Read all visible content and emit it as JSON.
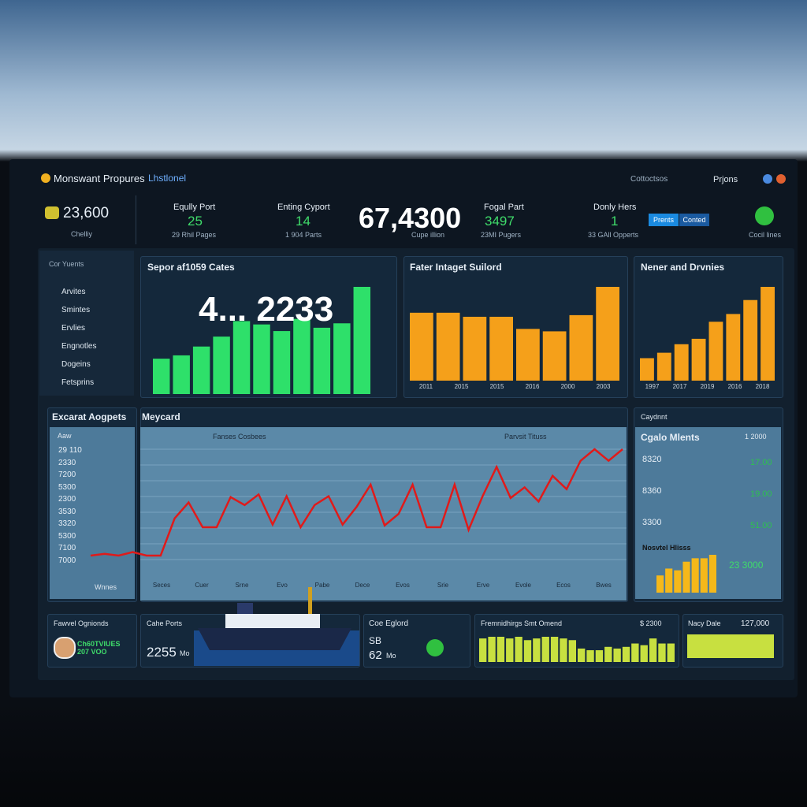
{
  "header": {
    "brand": "Monswant Propures",
    "menu": "Lhstlonel",
    "search": "Cottoctsos",
    "user": "Prjons"
  },
  "kpis": [
    {
      "value": "23,600",
      "sub": "Chelliy"
    },
    {
      "title": "Eqully Port",
      "value": "25",
      "sub": "29 Rhil Pages"
    },
    {
      "title": "Enting Cyport",
      "value": "14",
      "sub": "1 904 Parts"
    },
    {
      "value": "67,4300",
      "sub": "Cupe illion"
    },
    {
      "title": "Fogal Part",
      "value": "3497",
      "sub": "23MI Pugers"
    },
    {
      "title": "Donly Hers",
      "value": "1",
      "sub": "33 GAll Opperts"
    }
  ],
  "buttons": [
    "Prents",
    "Conted"
  ],
  "status": "Cocil lines",
  "sidebar": {
    "title": "Cor Yuents",
    "items": [
      "Arvites",
      "Smintes",
      "Ervlies",
      "Engnotles",
      "Dogeins",
      "Fetsprins"
    ]
  },
  "charts": [
    {
      "type": "bar",
      "title": "Sepor af1059 Cates",
      "big": "4... 2233",
      "color": "#2ee06a",
      "values": [
        32,
        35,
        43,
        52,
        66,
        63,
        57,
        68,
        60,
        64,
        97
      ],
      "xlabels": []
    },
    {
      "type": "bar",
      "title": "Fater Intaget Suilord",
      "color": "#f5a01a",
      "values": [
        84,
        84,
        79,
        79,
        64,
        61,
        81,
        116
      ],
      "xlabels": [
        "2011",
        "2015",
        "2015",
        "2016",
        "2000",
        "2003"
      ]
    },
    {
      "type": "bar",
      "title": "Nener and Drvnies",
      "color": "#f5a01a",
      "values": [
        29,
        36,
        47,
        54,
        76,
        86,
        104,
        121
      ],
      "xlabels": [
        "1997",
        "2017",
        "2019",
        "2016",
        "2018"
      ]
    }
  ],
  "left_panel": {
    "title": "Excarat Aogpets",
    "header": "Aaw",
    "labels": [
      "29 110",
      "2330",
      "7200",
      "5300",
      "2300",
      "3530",
      "3320",
      "5300",
      "7100",
      "7000"
    ],
    "footer": "Wnnes"
  },
  "line_chart": {
    "type": "line",
    "title": "Meycard",
    "legend": [
      "Fanses Cosbees",
      "Parvsit Tituss"
    ],
    "color": "#e01a1a",
    "values": [
      53,
      55,
      53,
      57,
      53,
      53,
      95,
      113,
      85,
      85,
      119,
      110,
      122,
      88,
      120,
      85,
      110,
      120,
      88,
      108,
      133,
      87,
      100,
      133,
      85,
      85,
      133,
      82,
      120,
      153,
      118,
      130,
      114,
      143,
      128,
      160,
      173,
      160,
      173
    ],
    "xlabels": [
      "Seces",
      "Cuer",
      "Srne",
      "Evo",
      "Pabe",
      "Dece",
      "Evos",
      "Srie",
      "Erve",
      "Evole",
      "Ecos",
      "Bwes"
    ]
  },
  "right_panel": {
    "title": "Caydnnt",
    "subtitle": "Cgalo Mlents",
    "badge": "1 2000",
    "rows": [
      [
        "8320",
        "17.00"
      ],
      [
        "8360",
        "19.00"
      ],
      [
        "3300",
        "51.00"
      ]
    ],
    "mini_title": "Nosvtel Hlisss",
    "mini_value": "23 3000",
    "mini_color": "#f5b81a",
    "mini_values": [
      20,
      28,
      26,
      36,
      40,
      40,
      44
    ]
  },
  "cards": [
    {
      "title": "Fawvel Ognionds",
      "value": "Ch60TVIUES 207 VOO"
    },
    {
      "title": "Cahe Ports",
      "value": "2255",
      "unit": "Mo"
    },
    {
      "title": "Coe Eglord",
      "sub": "SB",
      "value": "62",
      "unit": "Mo"
    },
    {
      "title": "Fremnidhirgs Smt Omend",
      "badge": "$ 2300",
      "color": "#c8e040",
      "values": [
        28,
        30,
        30,
        28,
        30,
        26,
        28,
        30,
        30,
        28,
        26,
        16,
        14,
        14,
        18,
        16,
        18,
        22,
        20,
        28,
        22,
        22
      ]
    },
    {
      "title": "Nacy Dale",
      "value": "127,000"
    }
  ]
}
